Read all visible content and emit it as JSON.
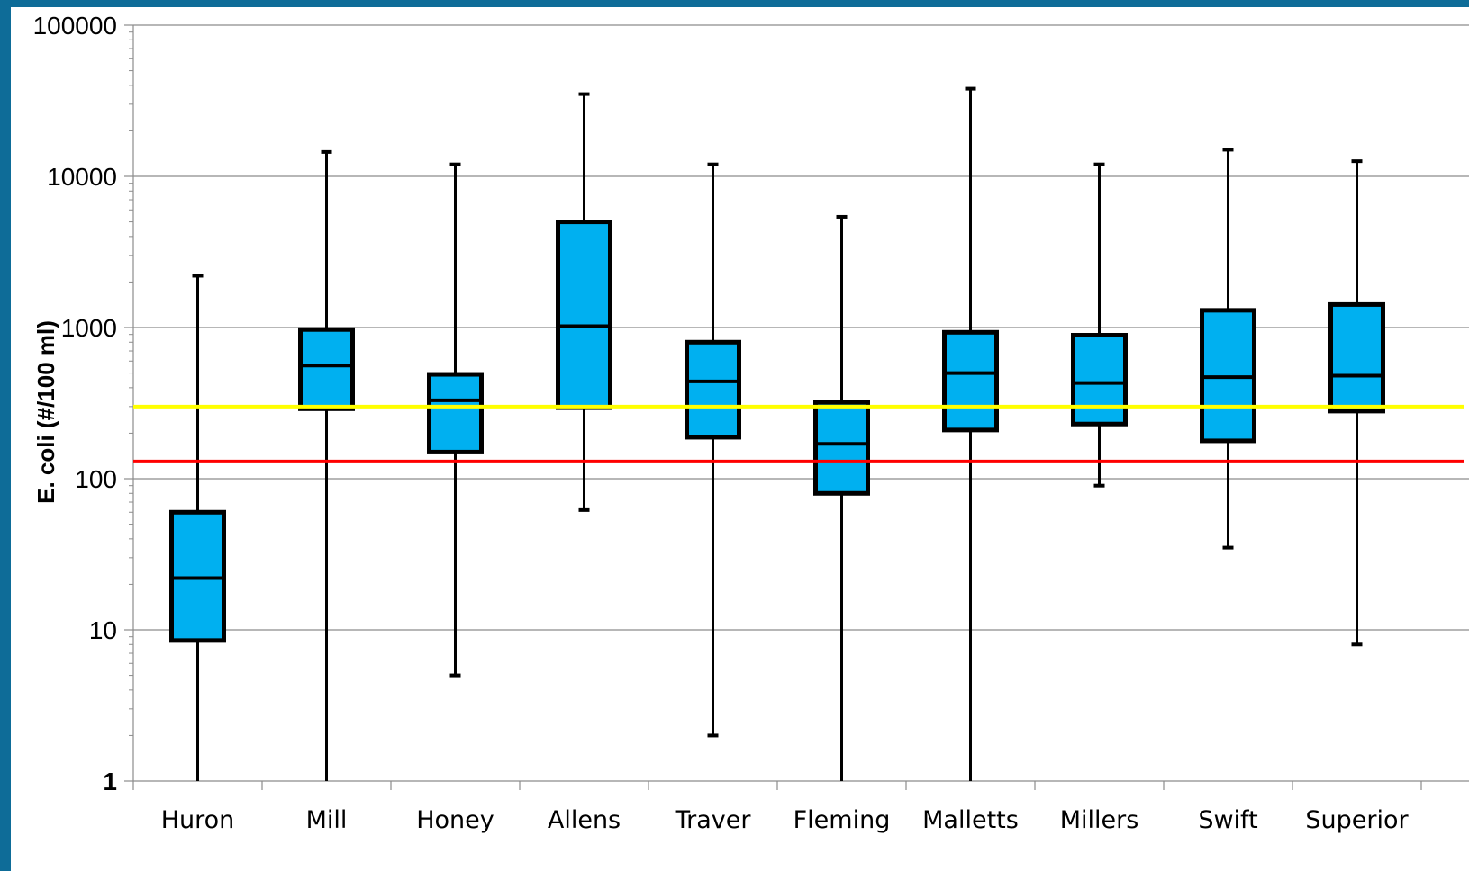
{
  "chart_data": {
    "type": "box",
    "ylabel": "E. coli (#/100 ml)",
    "yscale": "log",
    "ylim": [
      1,
      100000
    ],
    "yticks": [
      {
        "value": 1,
        "label": "1"
      },
      {
        "value": 10,
        "label": "10"
      },
      {
        "value": 100,
        "label": "100"
      },
      {
        "value": 1000,
        "label": "1000"
      },
      {
        "value": 10000,
        "label": "10000"
      },
      {
        "value": 100000,
        "label": "100000"
      }
    ],
    "grid": true,
    "categories": [
      "Huron",
      "Mill",
      "Honey",
      "Allens",
      "Traver",
      "Fleming",
      "Malletts",
      "Millers",
      "Swift",
      "Superior"
    ],
    "boxes": [
      {
        "min": 1,
        "q1": 8.5,
        "median": 22,
        "q3": 60,
        "max": 2200
      },
      {
        "min": 1,
        "q1": 290,
        "median": 560,
        "q3": 970,
        "max": 14500
      },
      {
        "min": 5,
        "q1": 150,
        "median": 330,
        "q3": 490,
        "max": 12000
      },
      {
        "min": 62,
        "q1": 295,
        "median": 1020,
        "q3": 5000,
        "max": 35000
      },
      {
        "min": 2,
        "q1": 188,
        "median": 440,
        "q3": 800,
        "max": 12000
      },
      {
        "min": 1,
        "q1": 80,
        "median": 170,
        "q3": 320,
        "max": 5400
      },
      {
        "min": 1,
        "q1": 210,
        "median": 500,
        "q3": 930,
        "max": 38000
      },
      {
        "min": 90,
        "q1": 230,
        "median": 430,
        "q3": 890,
        "max": 12000
      },
      {
        "min": 35,
        "q1": 178,
        "median": 470,
        "q3": 1300,
        "max": 15000
      },
      {
        "min": 8,
        "q1": 280,
        "median": 480,
        "q3": 1420,
        "max": 12600
      }
    ],
    "reference_lines": [
      {
        "value": 300,
        "color": "#ffff00"
      },
      {
        "value": 130,
        "color": "#ff0000"
      }
    ],
    "box_color": "#00b0f0"
  }
}
